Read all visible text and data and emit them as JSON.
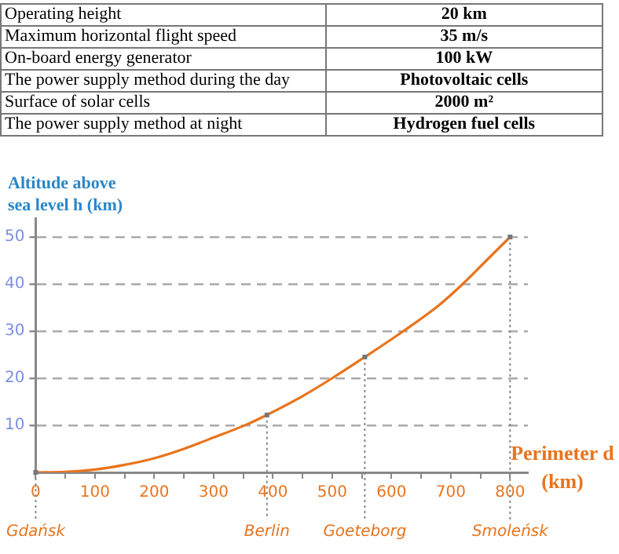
{
  "chart_data": {
    "type": "line",
    "xlabel": "Perimeter d (km)",
    "ylabel": "Altitude above sea level h (km)",
    "x": [
      0,
      50,
      100,
      150,
      200,
      250,
      300,
      360,
      390,
      450,
      500,
      555,
      620,
      680,
      720,
      760,
      800
    ],
    "series": [
      {
        "color": "#e8741e",
        "values": [
          0,
          0.1,
          0.6,
          1.6,
          3,
          5,
          7.4,
          10.4,
          12.2,
          16.2,
          20,
          24.5,
          30,
          35.5,
          40,
          45,
          50
        ]
      }
    ],
    "xlim": [
      0,
      830
    ],
    "xticks": [
      0,
      {
        "value": 50,
        "label": null
      },
      100,
      {
        "value": 150,
        "label": null
      },
      200,
      {
        "value": 250,
        "label": null
      },
      300,
      {
        "value": 350,
        "label": null
      },
      400,
      {
        "value": 450,
        "label": null
      },
      500,
      {
        "value": 550,
        "label": null
      },
      600,
      {
        "value": 650,
        "label": null
      },
      700,
      {
        "value": 750,
        "label": null
      },
      800
    ],
    "ylim": [
      0,
      54
    ],
    "yticks": [
      10,
      20,
      30,
      40,
      50
    ],
    "grid": "y",
    "marker": "none",
    "line_style": "solid",
    "ref_lines": [
      {
        "axis": "x",
        "value": 0,
        "label": "Gdańsk",
        "line_style": "dotted"
      },
      {
        "axis": "x",
        "value": 390,
        "label": "Berlin",
        "line_style": "dotted"
      },
      {
        "axis": "x",
        "value": 555,
        "label": "Goeteborg",
        "line_style": "dotted"
      },
      {
        "axis": "x",
        "value": 800,
        "label": "Smoleńsk",
        "line_style": "dotted"
      }
    ],
    "annotations": [
      "Operating height",
      "20 km",
      "Maximum horizontal flight speed",
      "35 m/s",
      "On-board energy generator",
      "100 kW",
      "The power supply method during the day",
      "Photovoltaic cells",
      "Surface of solar cells",
      "2000 m²",
      "The power supply method at night",
      "Hydrogen fuel cells"
    ]
  }
}
